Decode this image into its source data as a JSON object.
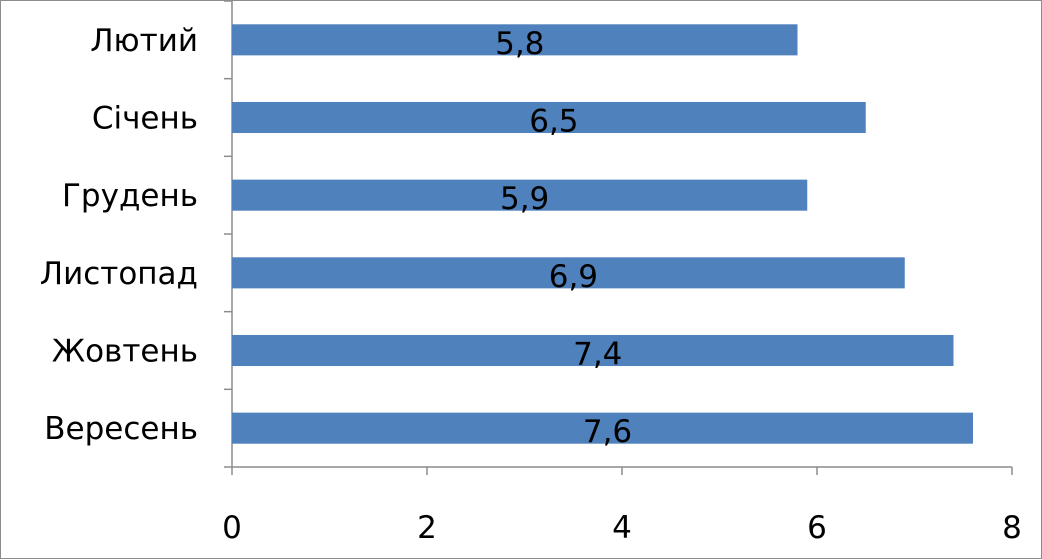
{
  "chart_data": {
    "type": "bar",
    "orientation": "horizontal",
    "categories": [
      "Вересень",
      "Жовтень",
      "Листопад",
      "Грудень",
      "Січень",
      "Лютий"
    ],
    "values": [
      7.6,
      7.4,
      6.9,
      5.9,
      6.5,
      5.8
    ],
    "value_labels": [
      "7,6",
      "7,4",
      "6,9",
      "5,9",
      "6,5",
      "5,8"
    ],
    "xlim": [
      0,
      8
    ],
    "x_ticks": [
      0,
      2,
      4,
      6,
      8
    ],
    "x_tick_labels": [
      "0",
      "2",
      "4",
      "6",
      "8"
    ],
    "grid": false,
    "legend": "none",
    "bar_color": "#4F81BD"
  }
}
